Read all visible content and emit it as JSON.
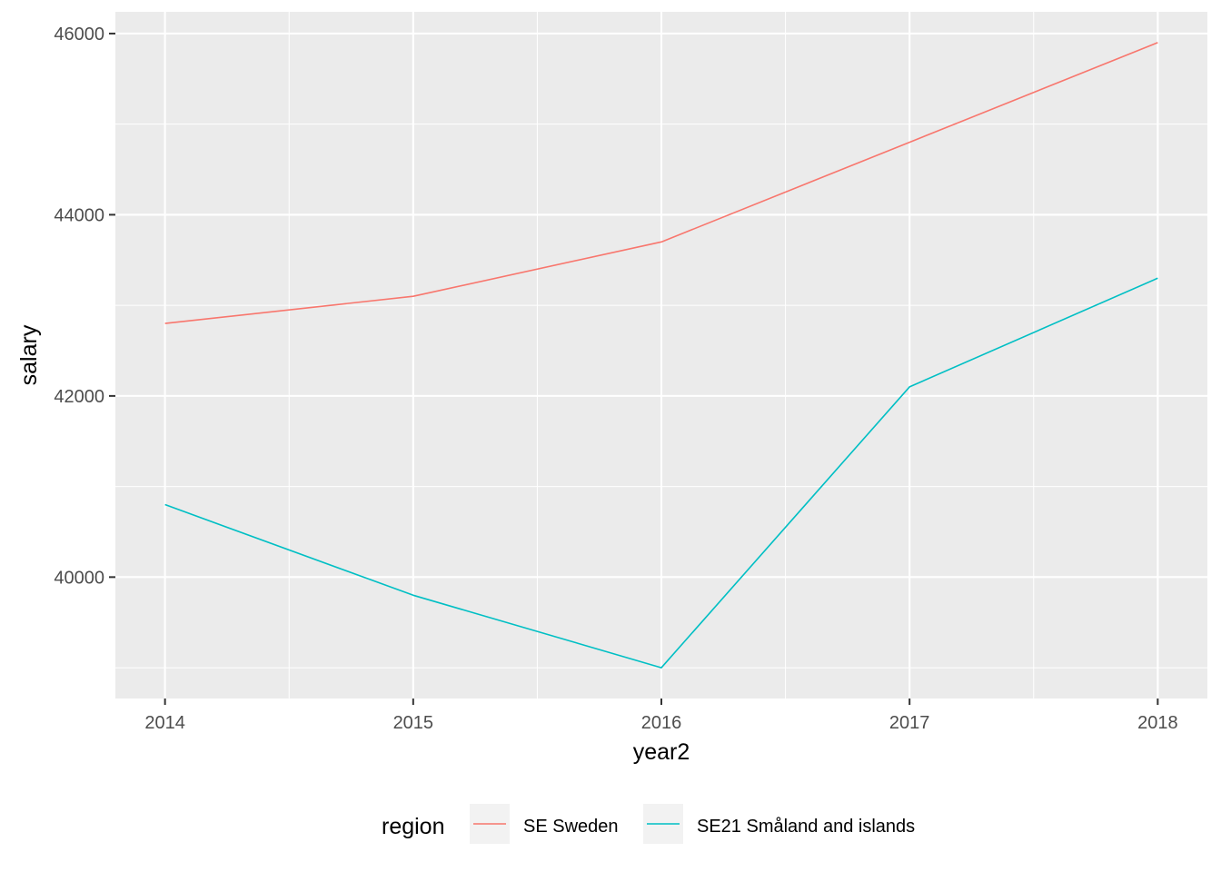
{
  "chart_data": {
    "type": "line",
    "title": "",
    "xlabel": "year2",
    "ylabel": "salary",
    "x": [
      2014,
      2015,
      2016,
      2017,
      2018
    ],
    "xlim": [
      2013.8,
      2018.2
    ],
    "ylim": [
      38660,
      46240
    ],
    "x_ticks": [
      2014,
      2015,
      2016,
      2017,
      2018
    ],
    "x_tick_labels": [
      "2014",
      "2015",
      "2016",
      "2017",
      "2018"
    ],
    "y_ticks": [
      40000,
      42000,
      44000,
      46000
    ],
    "y_tick_labels": [
      "40000",
      "42000",
      "44000",
      "46000"
    ],
    "grid": true,
    "legend": {
      "title": "region",
      "position": "bottom"
    },
    "series": [
      {
        "name": "SE Sweden",
        "color": "#F8766D",
        "values": [
          42800,
          43100,
          43700,
          44800,
          45900
        ]
      },
      {
        "name": "SE21 Småland and islands",
        "color": "#00BFC4",
        "values": [
          40800,
          39800,
          39000,
          42100,
          43300
        ]
      }
    ]
  }
}
